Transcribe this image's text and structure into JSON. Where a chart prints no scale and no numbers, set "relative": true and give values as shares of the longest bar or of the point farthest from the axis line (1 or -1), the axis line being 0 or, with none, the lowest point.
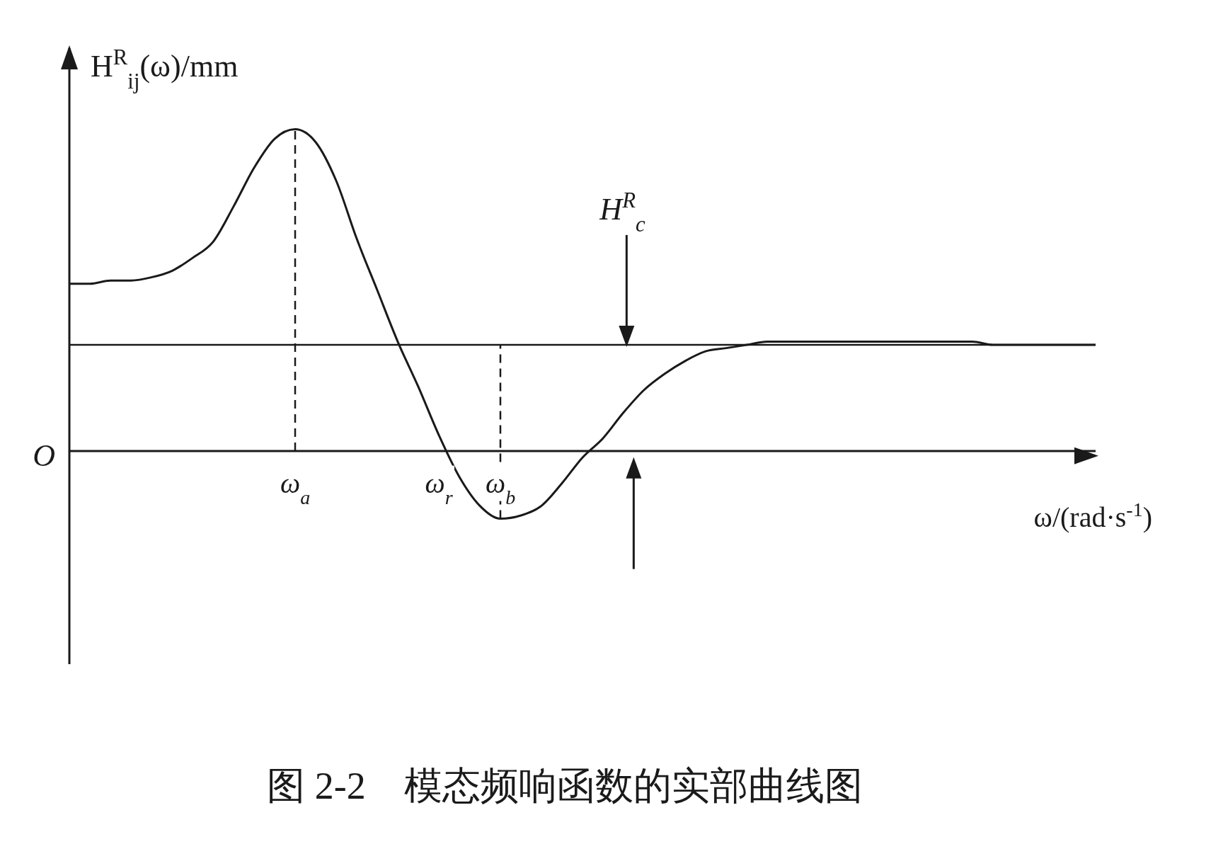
{
  "chart_data": {
    "type": "line",
    "title": "图 2-2　模态频响函数的实部曲线图",
    "ylabel": "H$^{R}$$_{ij}$(ω)/mm",
    "xlabel": "ω/(rad·s$^{-1}$)",
    "relative": true,
    "line_style": "solid",
    "categories": [
      null,
      null,
      null,
      null,
      null,
      null,
      null,
      null,
      null,
      null,
      null,
      "ω$_{a}$",
      null,
      null,
      null,
      null,
      null,
      null,
      "ω$_{r}$",
      null,
      null,
      "ω$_{b}$",
      null,
      null,
      null,
      null,
      null,
      null,
      null,
      null,
      null,
      null,
      null,
      null,
      null,
      null,
      null,
      null,
      null,
      null,
      null,
      null,
      null,
      null,
      null,
      null,
      null,
      null,
      null,
      null,
      null
    ],
    "series": [
      {
        "color": "#1a1a1a",
        "values": [
          0.52,
          0.52,
          0.53,
          0.53,
          0.54,
          0.56,
          0.6,
          0.65,
          0.76,
          0.88,
          0.97,
          1.0,
          0.96,
          0.84,
          0.66,
          0.5,
          0.34,
          0.2,
          0.05,
          -0.08,
          -0.17,
          -0.21,
          -0.2,
          -0.17,
          -0.1,
          -0.02,
          0.04,
          0.12,
          0.19,
          0.24,
          0.28,
          0.31,
          0.32,
          0.33,
          0.34,
          0.34,
          0.34,
          0.34,
          0.34,
          0.34,
          0.34,
          0.34,
          0.34,
          0.34,
          0.34,
          0.33,
          0.33,
          0.33,
          0.33,
          0.33,
          0.33
        ]
      }
    ],
    "ref_lines": [
      {
        "axis": "x",
        "value": "ω$_{a}$",
        "line_style": "dashed"
      },
      {
        "axis": "x",
        "value": "ω$_{b}$",
        "line_style": "dashed"
      },
      {
        "axis": "y",
        "value": 0.33,
        "label": "H$^{R}$$_{c}$"
      }
    ],
    "annotations": [
      "O"
    ]
  }
}
